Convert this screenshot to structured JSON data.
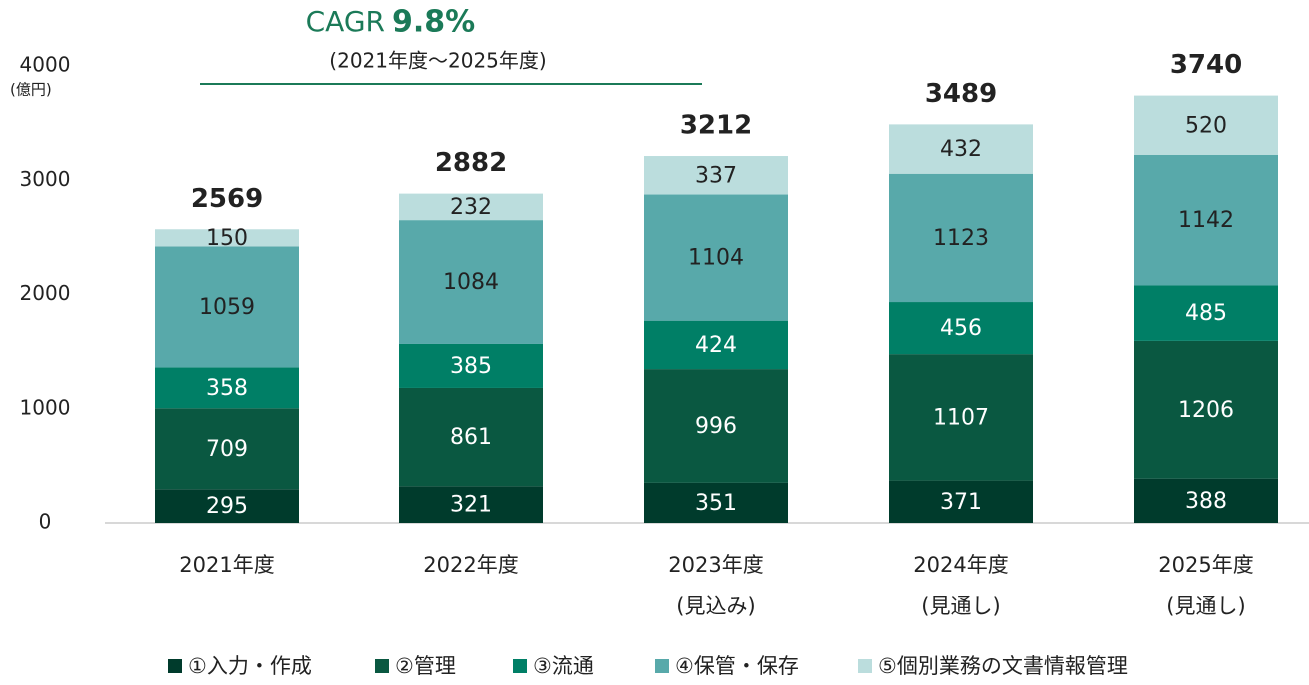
{
  "chart_data": {
    "type": "stacked_bar",
    "annotation": {
      "prefix": "CAGR",
      "value": "9.8%",
      "period": "(2021年度～2025年度)"
    },
    "y_unit": "(億円)",
    "categories": [
      "2021年度",
      "2022年度",
      "2023年度",
      "2024年度",
      "2025年度"
    ],
    "category_sublabels": [
      null,
      null,
      "(見込み)",
      "(見通し)",
      "(見通し)"
    ],
    "series": [
      {
        "name": "①入力・作成",
        "color": "#003b2c",
        "values": [
          295,
          321,
          351,
          371,
          388
        ]
      },
      {
        "name": "②管理",
        "color": "#0a5841",
        "values": [
          709,
          861,
          996,
          1107,
          1206
        ]
      },
      {
        "name": "③流通",
        "color": "#007f66",
        "values": [
          358,
          385,
          424,
          456,
          485
        ]
      },
      {
        "name": "④保管・保存",
        "color": "#58a9aa",
        "values": [
          1059,
          1084,
          1104,
          1123,
          1142
        ]
      },
      {
        "name": "⑤個別業務の文書情報管理",
        "color": "#bbdddd",
        "values": [
          150,
          232,
          337,
          432,
          520
        ]
      }
    ],
    "totals": [
      2569,
      2882,
      3212,
      3489,
      3740
    ],
    "ylim": [
      0,
      4000
    ],
    "yticks": [
      0,
      1000,
      2000,
      3000,
      4000
    ]
  }
}
